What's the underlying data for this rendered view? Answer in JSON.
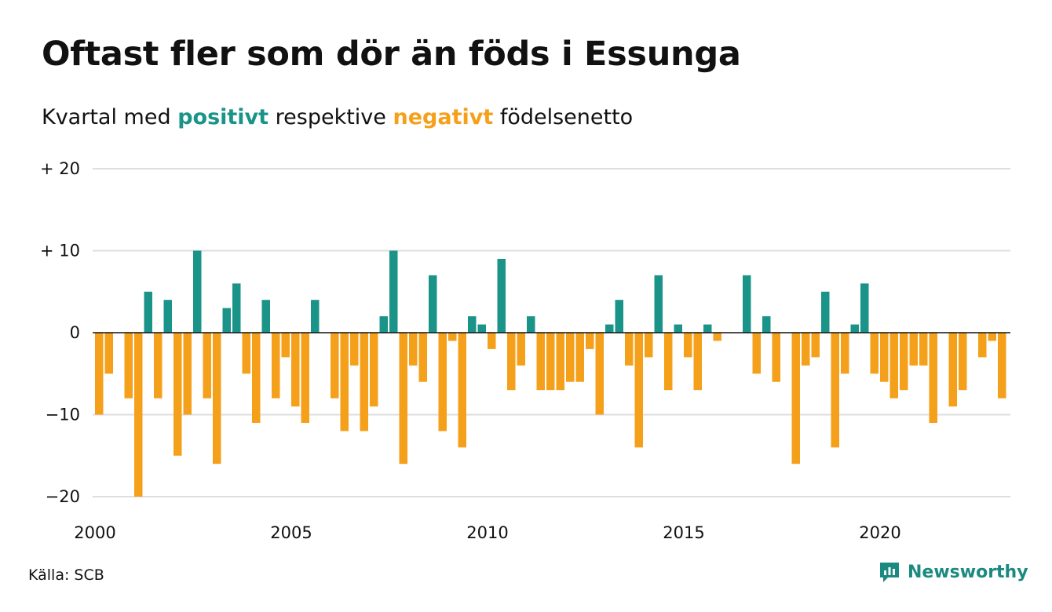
{
  "header": {
    "title": "Oftast fler som dör än föds i Essunga",
    "subtitle_prefix": "Kvartal med ",
    "subtitle_positive": "positivt",
    "subtitle_middle": " respektive ",
    "subtitle_negative": "negativt",
    "subtitle_suffix": " födelsenetto"
  },
  "footer": {
    "source": "Källa: SCB",
    "logo_text": "Newsworthy",
    "logo_icon": "bar-chart-speech-bubble-icon"
  },
  "colors": {
    "positive": "#1a9488",
    "negative": "#f5a01a",
    "grid": "#dedede",
    "zero_line": "#111111"
  },
  "chart_data": {
    "type": "bar",
    "title": "Oftast fler som dör än föds i Essunga",
    "subtitle": "Kvartal med positivt respektive negativt födelsenetto",
    "xlabel": "",
    "ylabel": "",
    "ylim": [
      -20,
      20
    ],
    "grid": true,
    "y_ticks": [
      20,
      10,
      0,
      -10,
      -20
    ],
    "y_tick_labels": [
      "+ 20",
      "+ 10",
      "0",
      "−10",
      "−20"
    ],
    "x_ticks": [
      2000,
      2005,
      2010,
      2015,
      2020
    ],
    "x_tick_labels": [
      "2000",
      "2005",
      "2010",
      "2015",
      "2020"
    ],
    "start": "2000 Q1",
    "end": "2023 Q2",
    "quarters": [
      "2000 Q1",
      "2000 Q2",
      "2000 Q3",
      "2000 Q4",
      "2001 Q1",
      "2001 Q2",
      "2001 Q3",
      "2001 Q4",
      "2002 Q1",
      "2002 Q2",
      "2002 Q3",
      "2002 Q4",
      "2003 Q1",
      "2003 Q2",
      "2003 Q3",
      "2003 Q4",
      "2004 Q1",
      "2004 Q2",
      "2004 Q3",
      "2004 Q4",
      "2005 Q1",
      "2005 Q2",
      "2005 Q3",
      "2005 Q4",
      "2006 Q1",
      "2006 Q2",
      "2006 Q3",
      "2006 Q4",
      "2007 Q1",
      "2007 Q2",
      "2007 Q3",
      "2007 Q4",
      "2008 Q1",
      "2008 Q2",
      "2008 Q3",
      "2008 Q4",
      "2009 Q1",
      "2009 Q2",
      "2009 Q3",
      "2009 Q4",
      "2010 Q1",
      "2010 Q2",
      "2010 Q3",
      "2010 Q4",
      "2011 Q1",
      "2011 Q2",
      "2011 Q3",
      "2011 Q4",
      "2012 Q1",
      "2012 Q2",
      "2012 Q3",
      "2012 Q4",
      "2013 Q1",
      "2013 Q2",
      "2013 Q3",
      "2013 Q4",
      "2014 Q1",
      "2014 Q2",
      "2014 Q3",
      "2014 Q4",
      "2015 Q1",
      "2015 Q2",
      "2015 Q3",
      "2015 Q4",
      "2016 Q1",
      "2016 Q2",
      "2016 Q3",
      "2016 Q4",
      "2017 Q1",
      "2017 Q2",
      "2017 Q3",
      "2017 Q4",
      "2018 Q1",
      "2018 Q2",
      "2018 Q3",
      "2018 Q4",
      "2019 Q1",
      "2019 Q2",
      "2019 Q3",
      "2019 Q4",
      "2020 Q1",
      "2020 Q2",
      "2020 Q3",
      "2020 Q4",
      "2021 Q1",
      "2021 Q2",
      "2021 Q3",
      "2021 Q4",
      "2022 Q1",
      "2022 Q2",
      "2022 Q3",
      "2022 Q4",
      "2023 Q1",
      "2023 Q2"
    ],
    "values": [
      -10,
      -5,
      0,
      -8,
      -20,
      5,
      -8,
      4,
      -15,
      -10,
      10,
      -8,
      -16,
      3,
      6,
      -5,
      -11,
      4,
      -8,
      -3,
      -9,
      -11,
      4,
      0,
      -8,
      -12,
      -4,
      -12,
      -9,
      2,
      10,
      -16,
      -4,
      -6,
      7,
      -12,
      -1,
      -14,
      2,
      1,
      -2,
      9,
      -7,
      -4,
      2,
      -7,
      -7,
      -7,
      -6,
      -6,
      -2,
      -10,
      1,
      4,
      -4,
      -14,
      -3,
      7,
      -7,
      1,
      -3,
      -7,
      1,
      -1,
      0,
      0,
      7,
      -5,
      2,
      -6,
      0,
      -16,
      -4,
      -3,
      5,
      -14,
      -5,
      1,
      6,
      -5,
      -6,
      -8,
      -7,
      -4,
      -4,
      -11,
      0,
      -9,
      -7,
      0,
      -3,
      -1,
      -8,
      0
    ]
  }
}
